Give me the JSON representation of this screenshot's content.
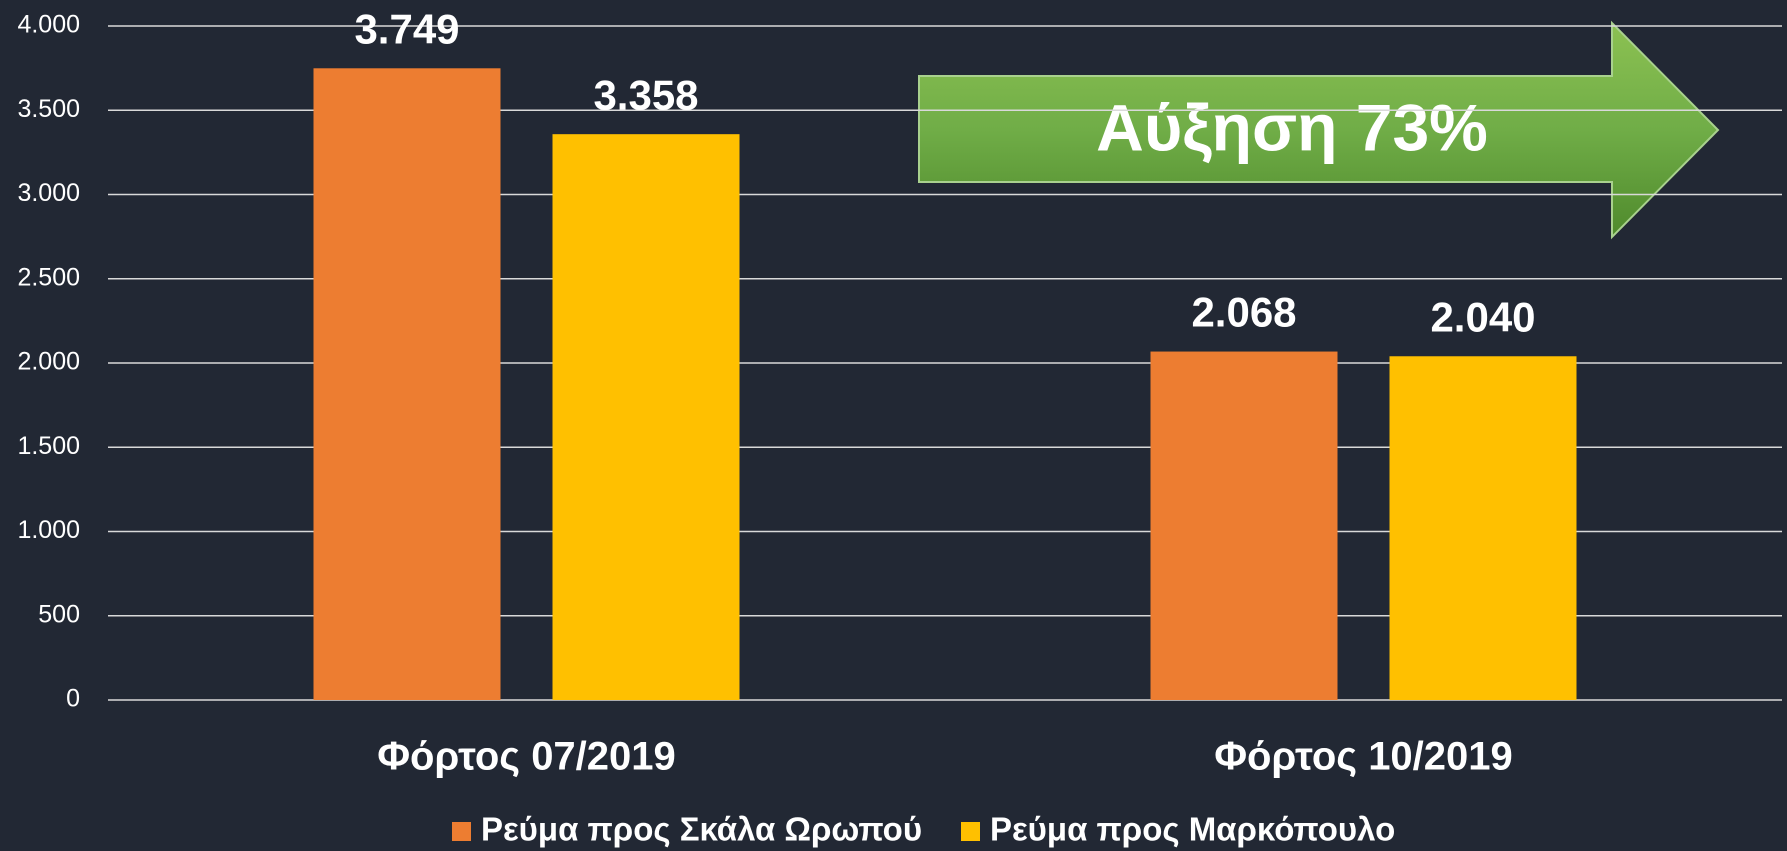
{
  "chart_data": {
    "type": "bar",
    "categories": [
      "Φόρτος 07/2019",
      "Φόρτος 10/2019"
    ],
    "series": [
      {
        "name": "Ρεύμα προς Σκάλα Ωρωπού",
        "color": "#ed7d31",
        "values": [
          3749,
          2068
        ],
        "value_labels": [
          "3.749",
          "2.068"
        ]
      },
      {
        "name": "Ρεύμα προς Μαρκόπουλο",
        "color": "#ffc000",
        "values": [
          3358,
          2040
        ],
        "value_labels": [
          "3.358",
          "2.040"
        ]
      }
    ],
    "ylim": [
      0,
      4000
    ],
    "yticks": [
      0,
      500,
      {
        "value": 1000,
        "label": "1.000"
      },
      {
        "value": 1500,
        "label": "1.500"
      },
      {
        "value": 2000,
        "label": "2.000"
      },
      {
        "value": 2500,
        "label": "2.500"
      },
      {
        "value": 3000,
        "label": "3.000"
      },
      {
        "value": 3500,
        "label": "3.500"
      },
      {
        "value": 4000,
        "label": "4.000"
      }
    ],
    "grid": true,
    "legend": "bottom",
    "annotation": "Αύξηση 73%"
  }
}
